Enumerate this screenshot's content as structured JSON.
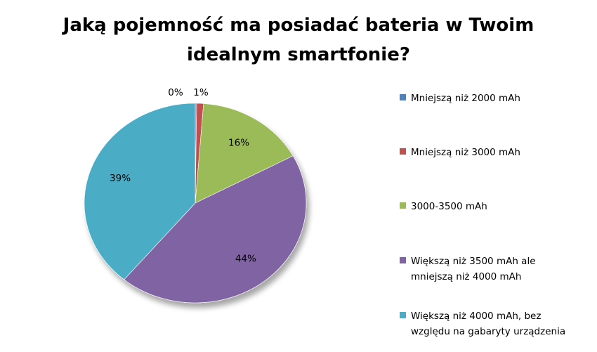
{
  "chart_data": {
    "type": "pie",
    "title_lines": [
      "Jaką pojemność ma posiadać bateria w Twoim",
      "idealnym smartfonie?"
    ],
    "slices": [
      {
        "name": "Mniejszą niż 2000 mAh",
        "value": 0.2,
        "label": "0%",
        "color": "#4f81bd"
      },
      {
        "name": "Mniejszą niż 3000 mAh",
        "value": 1,
        "label": "1%",
        "color": "#c0504d"
      },
      {
        "name": "3000-3500 mAh",
        "value": 16,
        "label": "16%",
        "color": "#9bbb59"
      },
      {
        "name": "Większą niż 3500 mAh ale mniejszą niż 4000 mAh",
        "value": 44,
        "label": "44%",
        "color": "#8064a2"
      },
      {
        "name": "Większą niż 4000 mAh, bez względu na gabaryty urządzenia",
        "value": 39,
        "label": "39%",
        "color": "#4bacc6"
      }
    ],
    "legend": {
      "position": "right",
      "entries": [
        [
          "Mniejszą niż 2000 mAh"
        ],
        [
          "Mniejszą niż 3000 mAh"
        ],
        [
          "3000-3500 mAh"
        ],
        [
          "Większą niż 3500 mAh ale",
          "mniejszą niż 4000 mAh"
        ],
        [
          "Większą niż 4000 mAh, bez",
          "względu na gabaryty urządzenia"
        ]
      ]
    }
  }
}
